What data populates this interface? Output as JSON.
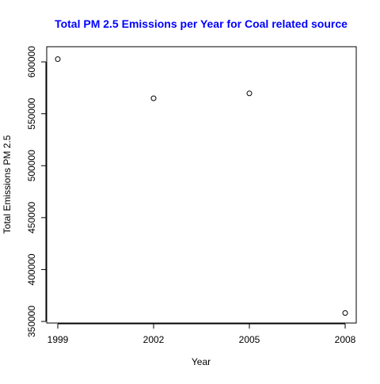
{
  "chart_data": {
    "type": "scatter",
    "title": "Total PM 2.5 Emissions per Year for Coal related source",
    "title_color": "#0000FF",
    "xlabel": "Year",
    "ylabel": "Total Emissions PM 2.5",
    "x": [
      1999,
      2002,
      2005,
      2008
    ],
    "y": [
      602624,
      564940,
      569654,
      358084
    ],
    "xlim": [
      1999,
      2008
    ],
    "ylim": [
      350000,
      610000
    ],
    "x_ticks": [
      1999,
      2002,
      2005,
      2008
    ],
    "y_ticks": [
      350000,
      400000,
      450000,
      500000,
      550000,
      600000
    ],
    "x_tick_labels": [
      "1999",
      "2002",
      "2005",
      "2008"
    ],
    "y_tick_labels": [
      "350000",
      "400000",
      "450000",
      "500000",
      "550000",
      "600000"
    ],
    "marker": "open-circle",
    "grid": false,
    "legend": "none"
  }
}
